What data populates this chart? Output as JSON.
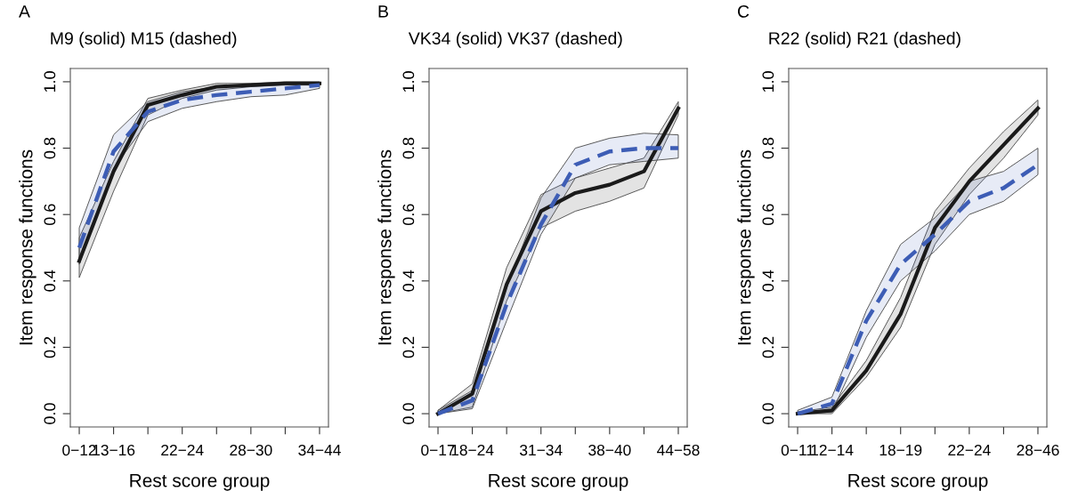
{
  "chart_data": [
    {
      "type": "line",
      "title": "M9 (solid) M15 (dashed)",
      "xlabel": "Rest score group",
      "ylabel": "Item response functions",
      "annotations": [
        "A"
      ],
      "categories": [
        "0−12",
        "13−16",
        null,
        "22−24",
        null,
        "28−30",
        null,
        "34−44"
      ],
      "ylim": [
        -0.04,
        1.04
      ],
      "yticks": [
        {
          "value": 0,
          "label": "0.0"
        },
        {
          "value": 0.2,
          "label": "0.2"
        },
        {
          "value": 0.4,
          "label": "0.4"
        },
        {
          "value": 0.6,
          "label": "0.6"
        },
        {
          "value": 0.8,
          "label": "0.8"
        },
        {
          "value": 1,
          "label": "1.0"
        }
      ],
      "grid": false,
      "legend": false,
      "series": [
        {
          "color": "#1a1a1a",
          "line_style": "solid",
          "values": [
            0.46,
            0.73,
            0.93,
            0.96,
            0.985,
            0.99,
            0.995,
            0.995
          ],
          "lower": [
            0.41,
            0.67,
            0.9,
            0.95,
            0.975,
            0.985,
            0.99,
            0.99
          ],
          "upper": [
            0.53,
            0.76,
            0.95,
            0.975,
            0.995,
            0.995,
            1.0,
            1.0
          ]
        },
        {
          "color": "#3d5db5",
          "line_style": "dashed",
          "values": [
            0.5,
            0.79,
            0.91,
            0.945,
            0.96,
            0.97,
            0.98,
            0.99
          ],
          "lower": [
            0.45,
            0.74,
            0.88,
            0.92,
            0.94,
            0.955,
            0.96,
            0.98
          ],
          "upper": [
            0.56,
            0.84,
            0.94,
            0.97,
            0.985,
            0.99,
            0.995,
            0.995
          ]
        }
      ]
    },
    {
      "type": "line",
      "title": "VK34 (solid) VK37 (dashed)",
      "xlabel": "Rest score group",
      "ylabel": "Item response functions",
      "annotations": [
        "B"
      ],
      "categories": [
        "0−17",
        "18−24",
        null,
        "31−34",
        null,
        "38−40",
        null,
        "44−58"
      ],
      "ylim": [
        -0.04,
        1.04
      ],
      "yticks": [
        {
          "value": 0,
          "label": "0.0"
        },
        {
          "value": 0.2,
          "label": "0.2"
        },
        {
          "value": 0.4,
          "label": "0.4"
        },
        {
          "value": 0.6,
          "label": "0.6"
        },
        {
          "value": 0.8,
          "label": "0.8"
        },
        {
          "value": 1,
          "label": "1.0"
        }
      ],
      "grid": false,
      "legend": false,
      "series": [
        {
          "color": "#1a1a1a",
          "line_style": "solid",
          "values": [
            0.0,
            0.06,
            0.39,
            0.61,
            0.665,
            0.69,
            0.73,
            0.92
          ],
          "lower": [
            0.0,
            0.02,
            0.34,
            0.56,
            0.61,
            0.64,
            0.68,
            0.9
          ],
          "upper": [
            0.01,
            0.09,
            0.44,
            0.66,
            0.71,
            0.74,
            0.77,
            0.94
          ]
        },
        {
          "color": "#3d5db5",
          "line_style": "dashed",
          "values": [
            0.0,
            0.04,
            0.33,
            0.57,
            0.75,
            0.79,
            0.8,
            0.8
          ],
          "lower": [
            0.0,
            0.015,
            0.28,
            0.54,
            0.71,
            0.75,
            0.76,
            0.77
          ],
          "upper": [
            0.01,
            0.07,
            0.38,
            0.65,
            0.8,
            0.83,
            0.845,
            0.84
          ]
        }
      ]
    },
    {
      "type": "line",
      "title": "R22 (solid) R21 (dashed)",
      "xlabel": "Rest score group",
      "ylabel": "Item response functions",
      "annotations": [
        "C"
      ],
      "categories": [
        "0−11",
        "12−14",
        null,
        "18−19",
        null,
        "22−24",
        null,
        "28−46"
      ],
      "ylim": [
        -0.04,
        1.04
      ],
      "yticks": [
        {
          "value": 0,
          "label": "0.0"
        },
        {
          "value": 0.2,
          "label": "0.2"
        },
        {
          "value": 0.4,
          "label": "0.4"
        },
        {
          "value": 0.6,
          "label": "0.6"
        },
        {
          "value": 0.8,
          "label": "0.8"
        },
        {
          "value": 1,
          "label": "1.0"
        }
      ],
      "grid": false,
      "legend": false,
      "series": [
        {
          "color": "#1a1a1a",
          "line_style": "solid",
          "values": [
            0.0,
            0.01,
            0.13,
            0.3,
            0.56,
            0.7,
            0.81,
            0.92
          ],
          "lower": [
            0.0,
            0.0,
            0.11,
            0.26,
            0.51,
            0.66,
            0.77,
            0.9
          ],
          "upper": [
            0.005,
            0.02,
            0.16,
            0.35,
            0.61,
            0.74,
            0.85,
            0.945
          ]
        },
        {
          "color": "#3d5db5",
          "line_style": "dashed",
          "values": [
            0.0,
            0.03,
            0.28,
            0.45,
            0.54,
            0.64,
            0.68,
            0.75
          ],
          "lower": [
            0.0,
            0.005,
            0.23,
            0.4,
            0.49,
            0.6,
            0.64,
            0.72
          ],
          "upper": [
            0.01,
            0.05,
            0.31,
            0.51,
            0.59,
            0.7,
            0.73,
            0.8
          ]
        }
      ]
    }
  ]
}
